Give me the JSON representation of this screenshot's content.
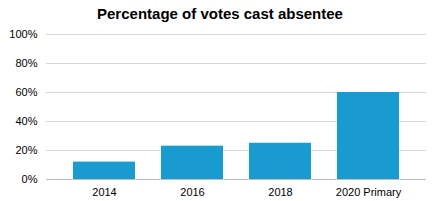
{
  "chart_data": {
    "type": "bar",
    "title": "Percentage of votes cast absentee",
    "categories": [
      "2014",
      "2016",
      "2018",
      "2020 Primary"
    ],
    "values": [
      12,
      23,
      25,
      60
    ],
    "color": "#1a9bd0",
    "ylim": [
      0,
      100
    ],
    "yticks": [
      {
        "value": 0,
        "label": "0%"
      },
      {
        "value": 20,
        "label": "20%"
      },
      {
        "value": 40,
        "label": "40%"
      },
      {
        "value": 60,
        "label": "60%"
      },
      {
        "value": 80,
        "label": "80%"
      },
      {
        "value": 100,
        "label": "100%"
      }
    ],
    "grid": true
  }
}
